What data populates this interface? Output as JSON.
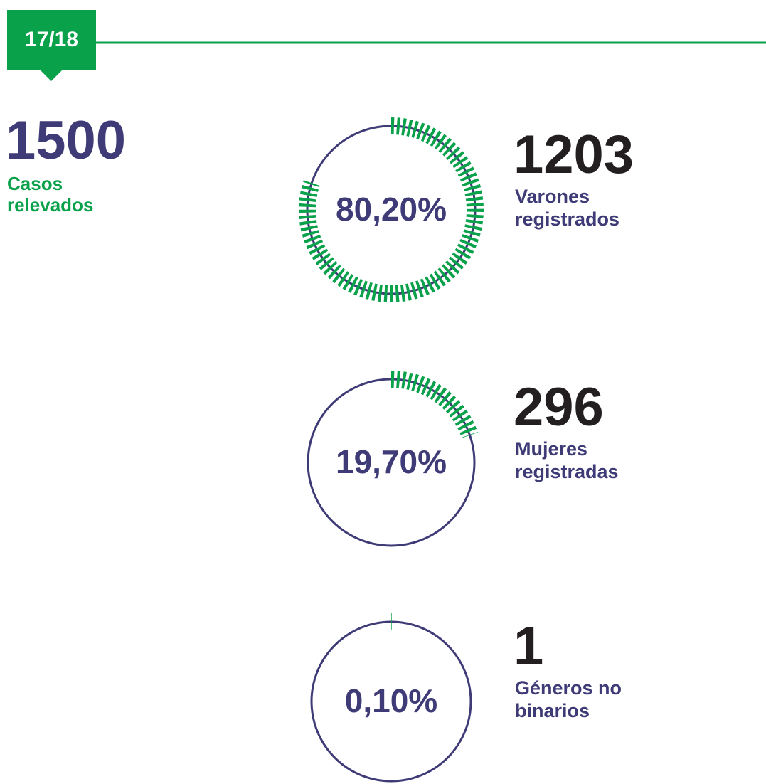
{
  "header": {
    "period": "17/18"
  },
  "total": {
    "value": 1500,
    "label": "Casos relevados"
  },
  "chart_data": [
    {
      "type": "gauge",
      "values": [
        80.2
      ],
      "value_labels": [
        "80,20%"
      ],
      "count": 1203,
      "label": "Varones registrados",
      "ylim": [
        0,
        100
      ],
      "color": "#0aa14b"
    },
    {
      "type": "gauge",
      "values": [
        19.7
      ],
      "value_labels": [
        "19,70%"
      ],
      "count": 296,
      "label": "Mujeres registradas",
      "ylim": [
        0,
        100
      ],
      "color": "#0aa14b"
    },
    {
      "type": "gauge",
      "values": [
        0.1
      ],
      "value_labels": [
        "0,10%"
      ],
      "count": 1,
      "label": "Géneros no binarios",
      "ylim": [
        0,
        100
      ],
      "color": "#0aa14b"
    }
  ]
}
